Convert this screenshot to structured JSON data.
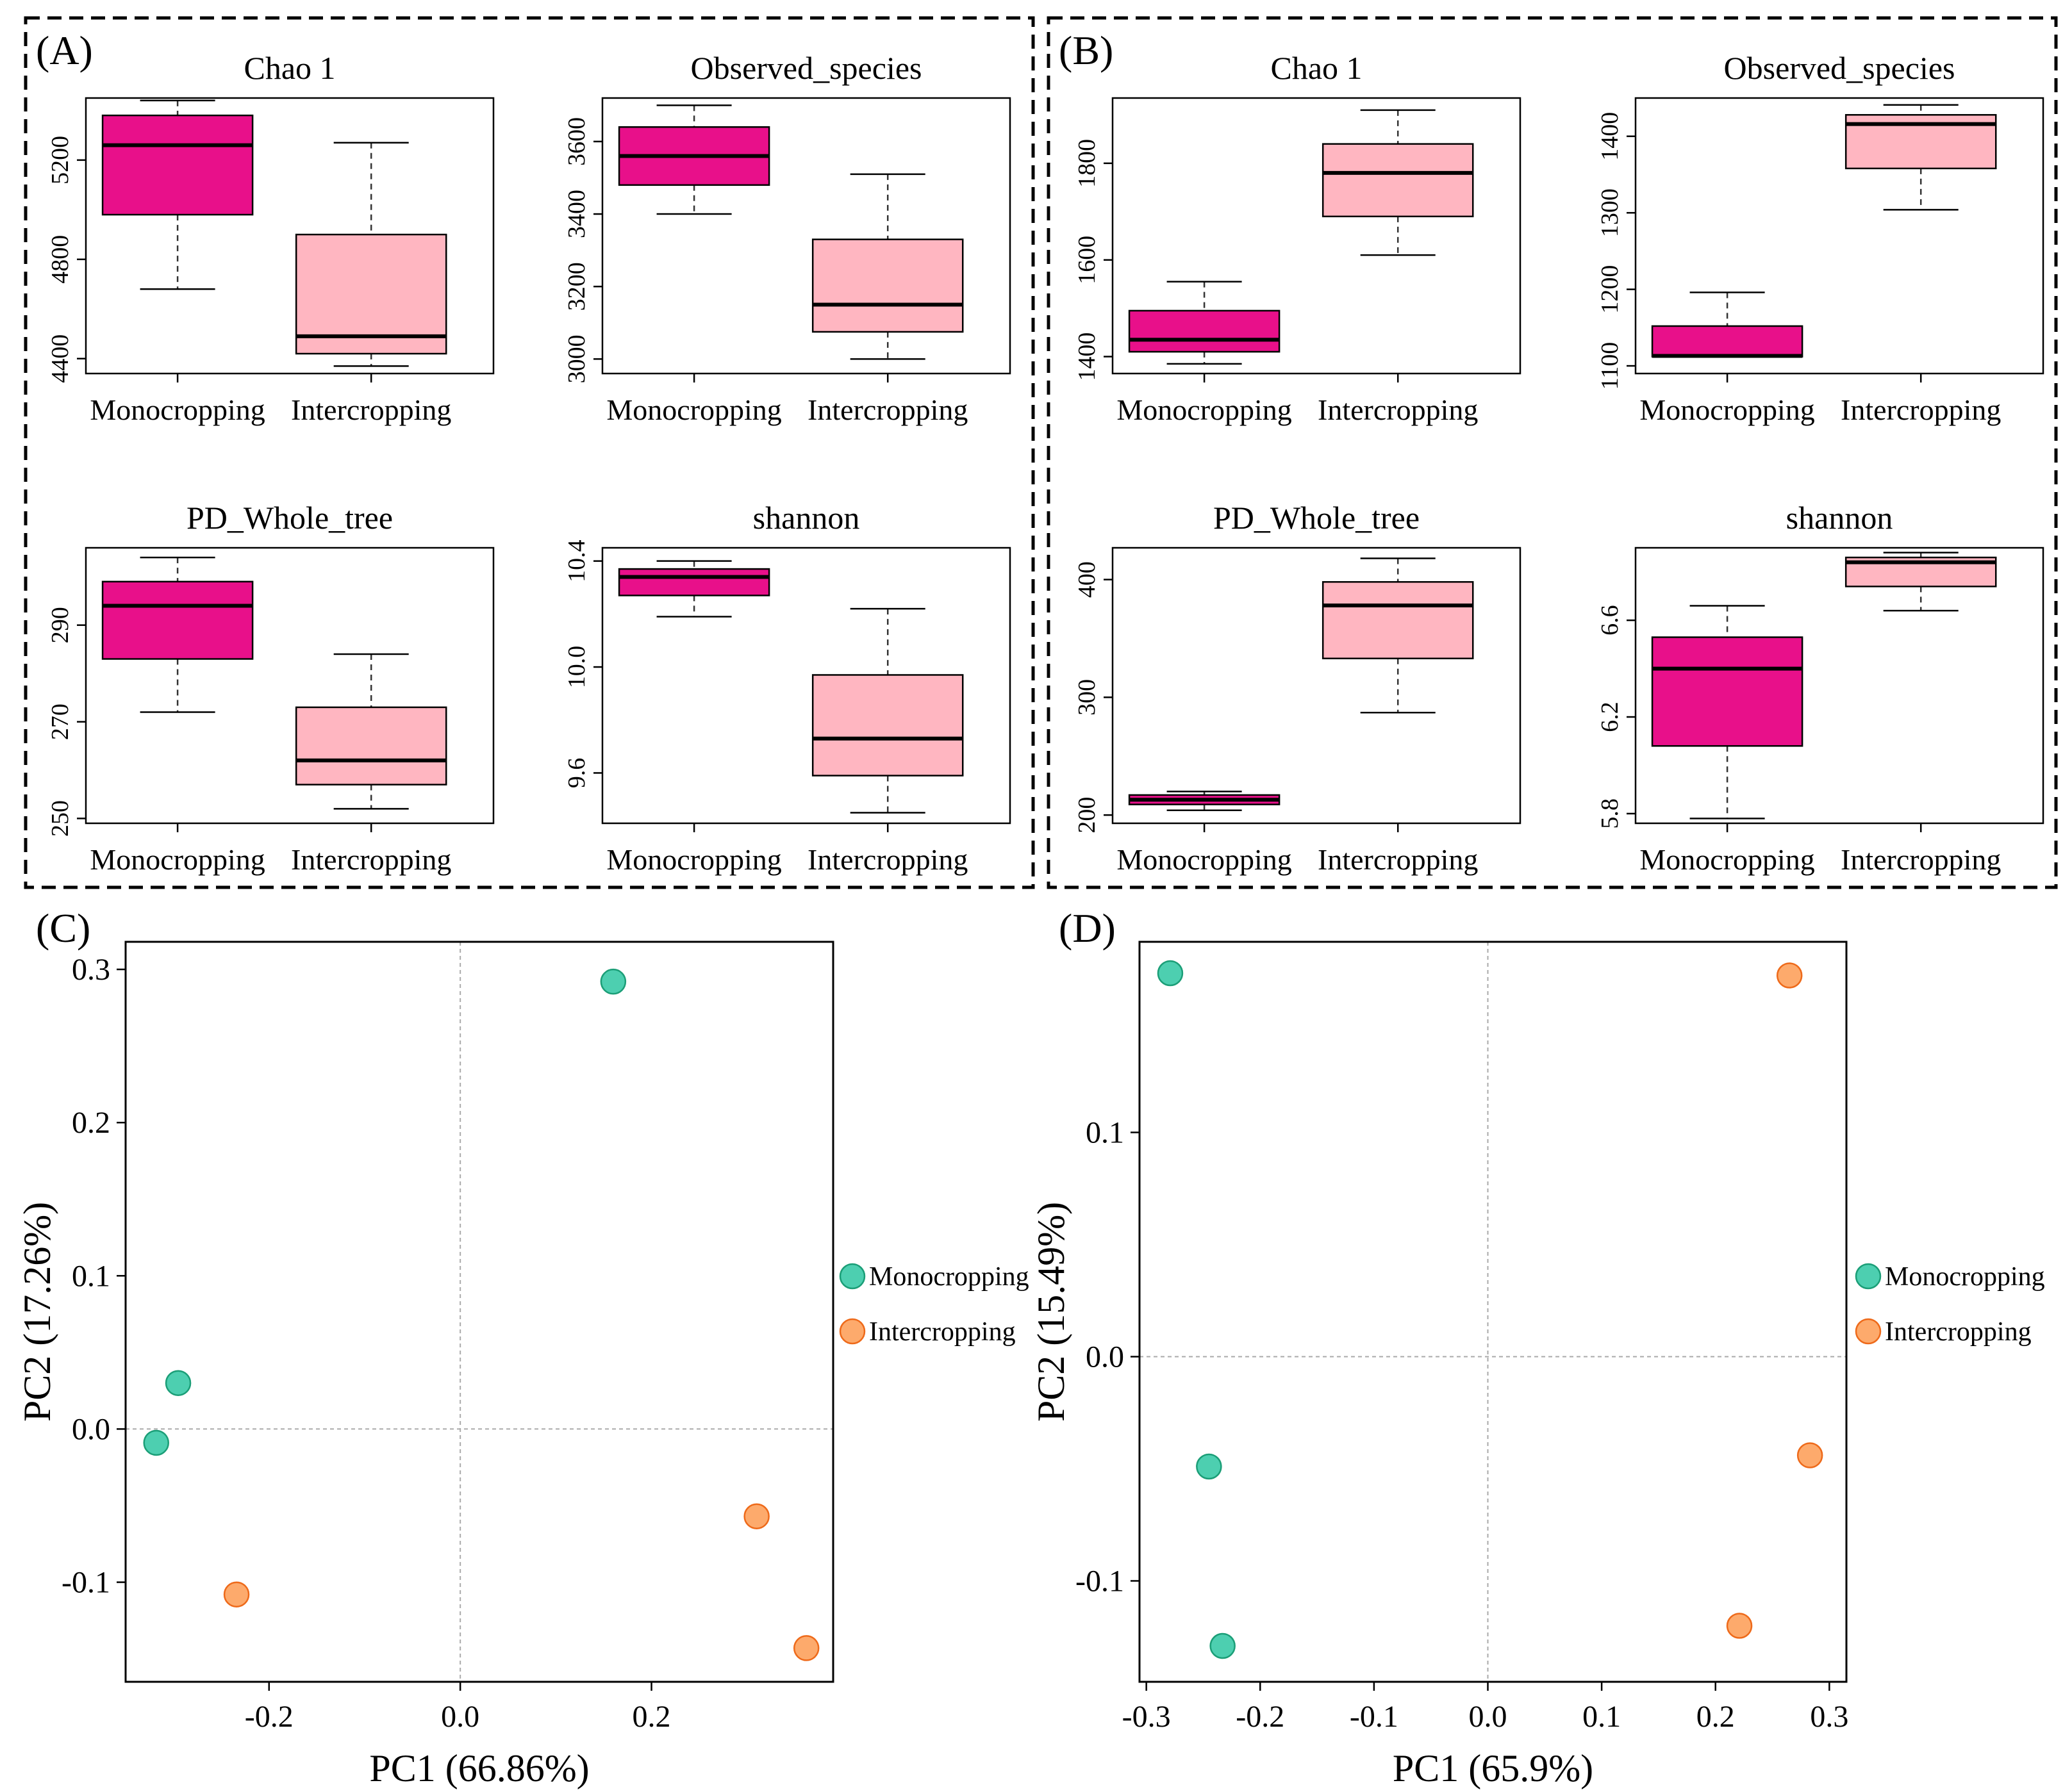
{
  "colors": {
    "mono_box": "#e8108a",
    "inter_box": "#ffb6c1",
    "mono_point": "#4dcfb0",
    "mono_point_stroke": "#1b9e77",
    "inter_point": "#fdaa6c",
    "inter_point_stroke": "#ee6a1a"
  },
  "panels": {
    "A": {
      "label": "(A)"
    },
    "B": {
      "label": "(B)"
    },
    "C": {
      "label": "(C)"
    },
    "D": {
      "label": "(D)"
    }
  },
  "chart_data": [
    {
      "type": "box",
      "panel": "A",
      "title": "Chao 1",
      "categories": [
        "Monocropping",
        "Intercropping"
      ],
      "ylim": [
        4340,
        5450
      ],
      "yticks": [
        4400,
        4800,
        5200
      ],
      "yticklabels": [
        "4400",
        "4800",
        "5200"
      ],
      "boxes": [
        {
          "name": "Monocropping",
          "min": 4680,
          "q1": 4980,
          "median": 5260,
          "q3": 5380,
          "max": 5440
        },
        {
          "name": "Intercropping",
          "min": 4370,
          "q1": 4420,
          "median": 4490,
          "q3": 4900,
          "max": 5270
        }
      ]
    },
    {
      "type": "box",
      "panel": "A",
      "title": "Observed_species",
      "categories": [
        "Monocropping",
        "Intercropping"
      ],
      "ylim": [
        2960,
        3720
      ],
      "yticks": [
        3000,
        3200,
        3400,
        3600
      ],
      "yticklabels": [
        "3000",
        "3200",
        "3400",
        "3600"
      ],
      "boxes": [
        {
          "name": "Monocropping",
          "min": 3400,
          "q1": 3480,
          "median": 3560,
          "q3": 3640,
          "max": 3700
        },
        {
          "name": "Intercropping",
          "min": 3000,
          "q1": 3075,
          "median": 3150,
          "q3": 3330,
          "max": 3510
        }
      ]
    },
    {
      "type": "box",
      "panel": "A",
      "title": "PD_Whole_tree",
      "categories": [
        "Monocropping",
        "Intercropping"
      ],
      "ylim": [
        249,
        306
      ],
      "yticks": [
        250,
        270,
        290
      ],
      "yticklabels": [
        "250",
        "270",
        "290"
      ],
      "boxes": [
        {
          "name": "Monocropping",
          "min": 272,
          "q1": 283,
          "median": 294,
          "q3": 299,
          "max": 304
        },
        {
          "name": "Intercropping",
          "min": 252,
          "q1": 257,
          "median": 262,
          "q3": 273,
          "max": 284
        }
      ]
    },
    {
      "type": "box",
      "panel": "A",
      "title": "shannon",
      "categories": [
        "Monocropping",
        "Intercropping"
      ],
      "ylim": [
        9.41,
        10.45
      ],
      "yticks": [
        9.6,
        10.0,
        10.4
      ],
      "yticklabels": [
        "9.6",
        "10.0",
        "10.4"
      ],
      "boxes": [
        {
          "name": "Monocropping",
          "min": 10.19,
          "q1": 10.27,
          "median": 10.34,
          "q3": 10.37,
          "max": 10.4
        },
        {
          "name": "Intercropping",
          "min": 9.45,
          "q1": 9.59,
          "median": 9.73,
          "q3": 9.97,
          "max": 10.22
        }
      ]
    },
    {
      "type": "box",
      "panel": "B",
      "title": "Chao 1",
      "categories": [
        "Monocropping",
        "Intercropping"
      ],
      "ylim": [
        1365,
        1935
      ],
      "yticks": [
        1400,
        1600,
        1800
      ],
      "yticklabels": [
        "1400",
        "1600",
        "1800"
      ],
      "boxes": [
        {
          "name": "Monocropping",
          "min": 1385,
          "q1": 1410,
          "median": 1435,
          "q3": 1495,
          "max": 1555
        },
        {
          "name": "Intercropping",
          "min": 1610,
          "q1": 1690,
          "median": 1780,
          "q3": 1840,
          "max": 1910
        }
      ]
    },
    {
      "type": "box",
      "panel": "B",
      "title": "Observed_species",
      "categories": [
        "Monocropping",
        "Intercropping"
      ],
      "ylim": [
        1090,
        1450
      ],
      "yticks": [
        1100,
        1200,
        1300,
        1400
      ],
      "yticklabels": [
        "1100",
        "1200",
        "1300",
        "1400"
      ],
      "boxes": [
        {
          "name": "Monocropping",
          "min": 1112,
          "q1": 1112,
          "median": 1113,
          "q3": 1152,
          "max": 1196
        },
        {
          "name": "Intercropping",
          "min": 1304,
          "q1": 1358,
          "median": 1416,
          "q3": 1428,
          "max": 1441
        }
      ]
    },
    {
      "type": "box",
      "panel": "B",
      "title": "PD_Whole_tree",
      "categories": [
        "Monocropping",
        "Intercropping"
      ],
      "ylim": [
        193,
        427
      ],
      "yticks": [
        200,
        300,
        400
      ],
      "yticklabels": [
        "200",
        "300",
        "400"
      ],
      "boxes": [
        {
          "name": "Monocropping",
          "min": 204,
          "q1": 209,
          "median": 213,
          "q3": 217,
          "max": 220
        },
        {
          "name": "Intercropping",
          "min": 287,
          "q1": 333,
          "median": 378,
          "q3": 398,
          "max": 418
        }
      ]
    },
    {
      "type": "box",
      "panel": "B",
      "title": "shannon",
      "categories": [
        "Monocropping",
        "Intercropping"
      ],
      "ylim": [
        5.76,
        6.9
      ],
      "yticks": [
        5.8,
        6.2,
        6.6
      ],
      "yticklabels": [
        "5.8",
        "6.2",
        "6.6"
      ],
      "boxes": [
        {
          "name": "Monocropping",
          "min": 5.78,
          "q1": 6.08,
          "median": 6.4,
          "q3": 6.53,
          "max": 6.66
        },
        {
          "name": "Intercropping",
          "min": 6.64,
          "q1": 6.74,
          "median": 6.84,
          "q3": 6.86,
          "max": 6.88
        }
      ]
    },
    {
      "type": "scatter",
      "panel": "C",
      "xlabel": "PC1 (66.86%)",
      "ylabel": "PC2 (17.26%)",
      "xlim": [
        -0.35,
        0.39
      ],
      "ylim": [
        -0.165,
        0.318
      ],
      "xticks": [
        -0.2,
        0.0,
        0.2
      ],
      "xticklabels": [
        "-0.2",
        "0.0",
        "0.2"
      ],
      "yticks": [
        -0.1,
        0.0,
        0.1,
        0.2,
        0.3
      ],
      "yticklabels": [
        "-0.1",
        "0.0",
        "0.1",
        "0.2",
        "0.3"
      ],
      "legend": [
        "Monocropping",
        "Intercropping"
      ],
      "legend_position": "right",
      "series": [
        {
          "name": "Monocropping",
          "points": [
            [
              0.16,
              0.292
            ],
            [
              -0.295,
              0.03
            ],
            [
              -0.318,
              -0.009
            ]
          ]
        },
        {
          "name": "Intercropping",
          "points": [
            [
              -0.234,
              -0.108
            ],
            [
              0.31,
              -0.057
            ],
            [
              0.362,
              -0.143
            ]
          ]
        }
      ]
    },
    {
      "type": "scatter",
      "panel": "D",
      "xlabel": "PC1 (65.9%)",
      "ylabel": "PC2 (15.49%)",
      "xlim": [
        -0.306,
        0.315
      ],
      "ylim": [
        -0.145,
        0.185
      ],
      "xticks": [
        -0.3,
        -0.2,
        -0.1,
        0.0,
        0.1,
        0.2,
        0.3
      ],
      "xticklabels": [
        "-0.3",
        "-0.2",
        "-0.1",
        "0.0",
        "0.1",
        "0.2",
        "0.3"
      ],
      "yticks": [
        -0.1,
        0.0,
        0.1
      ],
      "yticklabels": [
        "-0.1",
        "0.0",
        "0.1"
      ],
      "legend": [
        "Monocropping",
        "Intercropping"
      ],
      "legend_position": "right",
      "series": [
        {
          "name": "Monocropping",
          "points": [
            [
              -0.279,
              0.171
            ],
            [
              -0.245,
              -0.049
            ],
            [
              -0.233,
              -0.129
            ]
          ]
        },
        {
          "name": "Intercropping",
          "points": [
            [
              0.265,
              0.17
            ],
            [
              0.283,
              -0.044
            ],
            [
              0.221,
              -0.12
            ]
          ]
        }
      ]
    }
  ]
}
